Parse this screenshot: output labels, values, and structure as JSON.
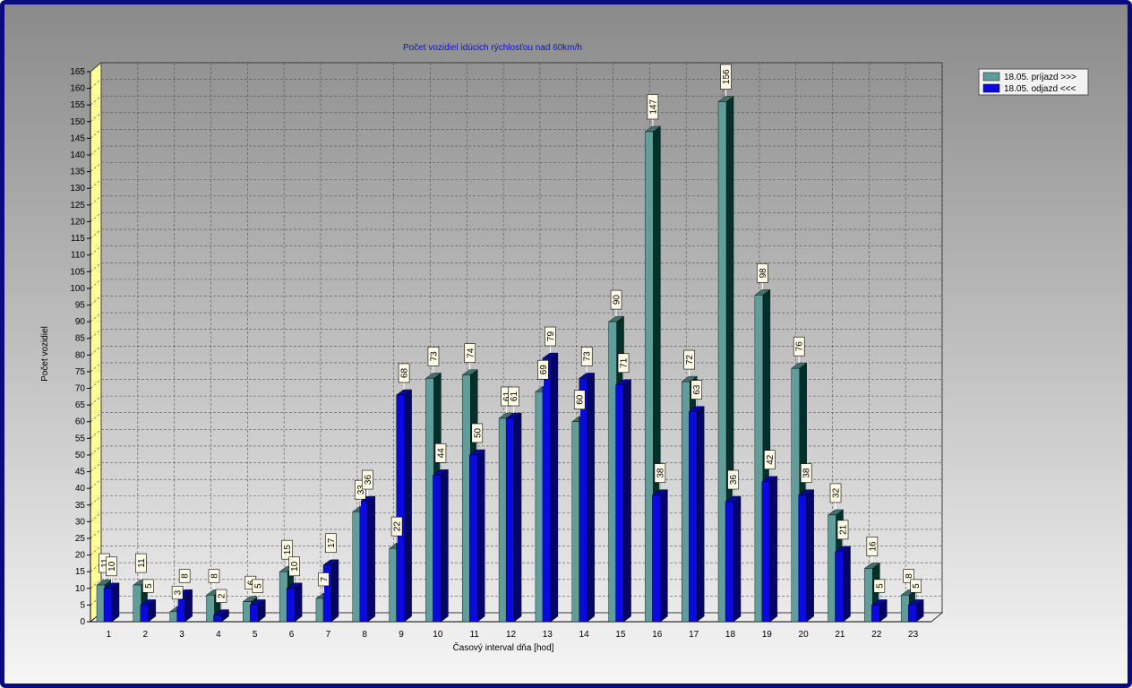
{
  "chart_data": {
    "type": "bar",
    "title": "Počet vozidiel idúcich rýchlosťou nad 60km/h",
    "xlabel": "Časový interval dňa [hod]",
    "ylabel": "Počet vozidiel",
    "ylim": [
      0,
      165
    ],
    "ytick_step": 5,
    "grid": true,
    "legend_position": "top-right",
    "categories": [
      "1",
      "2",
      "3",
      "4",
      "5",
      "6",
      "7",
      "8",
      "9",
      "10",
      "11",
      "12",
      "13",
      "14",
      "15",
      "16",
      "17",
      "18",
      "19",
      "20",
      "21",
      "22",
      "23"
    ],
    "series": [
      {
        "name": "18.05.  príjazd >>>",
        "color": "#5f9e9b",
        "values": [
          11,
          11,
          3,
          8,
          6,
          15,
          7,
          33,
          22,
          73,
          74,
          61,
          69,
          60,
          90,
          147,
          72,
          156,
          98,
          76,
          32,
          16,
          8
        ]
      },
      {
        "name": "18.05.  odjazd <<<",
        "color": "#0a0ae0",
        "values": [
          10,
          5,
          8,
          2,
          5,
          10,
          17,
          36,
          68,
          44,
          50,
          61,
          79,
          73,
          71,
          38,
          63,
          36,
          42,
          38,
          21,
          5,
          5
        ]
      }
    ]
  }
}
